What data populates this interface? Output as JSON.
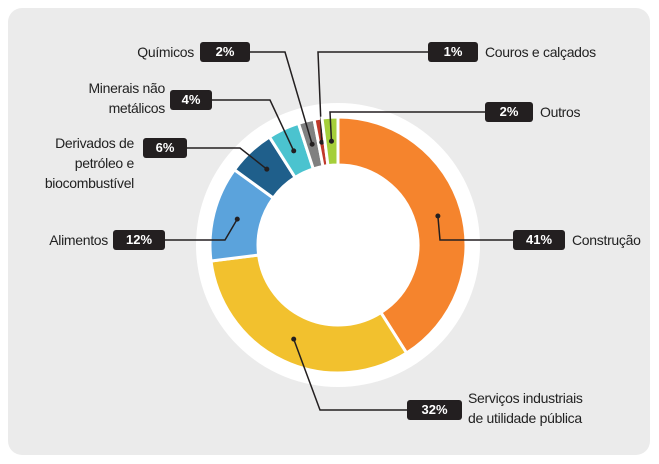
{
  "chart_data": {
    "type": "donut",
    "categories": [
      "Construção",
      "Serviços industriais\nde utilidade pública",
      "Alimentos",
      "Derivados de\npetróleo e\nbiocombustível",
      "Minerais não\nmetálicos",
      "Químicos",
      "Couros e calçados",
      "Outros"
    ],
    "values": [
      41,
      32,
      12,
      6,
      4,
      2,
      1,
      2
    ],
    "value_labels": [
      "41%",
      "32%",
      "12%",
      "6%",
      "4%",
      "2%",
      "1%",
      "2%"
    ],
    "colors": [
      "#f5842d",
      "#f2c12e",
      "#5ba3dc",
      "#1f5f8b",
      "#4bc3cf",
      "#808080",
      "#c0392b",
      "#a5cf3a"
    ]
  }
}
